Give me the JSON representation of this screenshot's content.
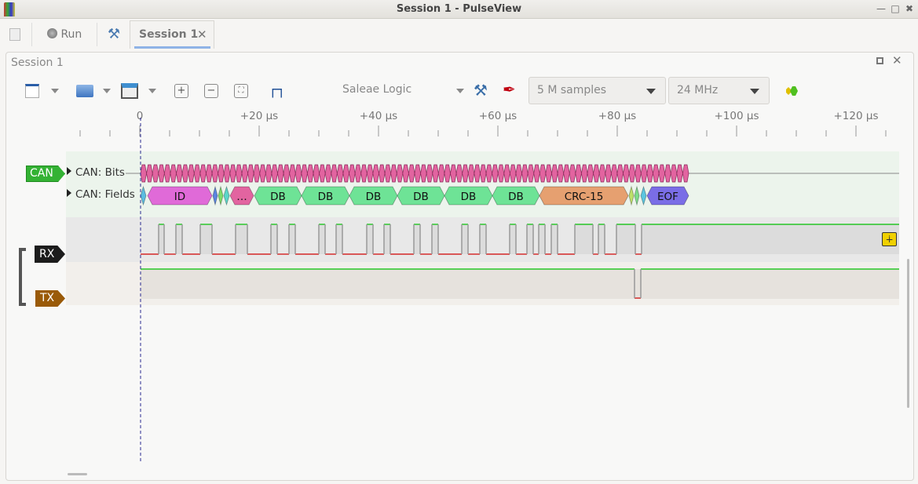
{
  "window": {
    "title": "Session 1 - PulseView"
  },
  "tabbar": {
    "run_label": "Run",
    "session_tab": "Session 1"
  },
  "session": {
    "title": "Session 1",
    "device": "Saleae Logic",
    "samples": "5 M samples",
    "rate": "24 MHz"
  },
  "ruler": {
    "ticks": [
      "0",
      "+20 µs",
      "+40 µs",
      "+60 µs",
      "+80 µs",
      "+100 µs",
      "+120 µs"
    ]
  },
  "decoder": {
    "badge": "CAN",
    "rows": [
      "CAN: Bits",
      "CAN: Fields"
    ],
    "bit_color": "#e264a0",
    "fields": [
      {
        "label": "",
        "color": "#5bbde0"
      },
      {
        "label": "ID",
        "color": "#e06ad8"
      },
      {
        "label": "",
        "color": "#5b85e0"
      },
      {
        "label": "",
        "color": "#7edc6a"
      },
      {
        "label": "",
        "color": "#5bd6c8"
      },
      {
        "label": "…",
        "color": "#e264a0"
      },
      {
        "label": "DB",
        "color": "#6ee396"
      },
      {
        "label": "DB",
        "color": "#6ee396"
      },
      {
        "label": "DB",
        "color": "#6ee396"
      },
      {
        "label": "DB",
        "color": "#6ee396"
      },
      {
        "label": "DB",
        "color": "#6ee396"
      },
      {
        "label": "DB",
        "color": "#6ee396"
      },
      {
        "label": "CRC-15",
        "color": "#e6a070"
      },
      {
        "label": "",
        "color": "#bde06a"
      },
      {
        "label": "",
        "color": "#7edc8a"
      },
      {
        "label": "",
        "color": "#5bc6e0"
      },
      {
        "label": "EOF",
        "color": "#7a6de6"
      }
    ]
  },
  "channels": [
    {
      "name": "RX",
      "color": "#1c1c1c"
    },
    {
      "name": "TX",
      "color": "#9a5a08"
    }
  ],
  "colors": {
    "high": "#00c000",
    "low": "#d00000",
    "can_badge": "#34b234"
  }
}
